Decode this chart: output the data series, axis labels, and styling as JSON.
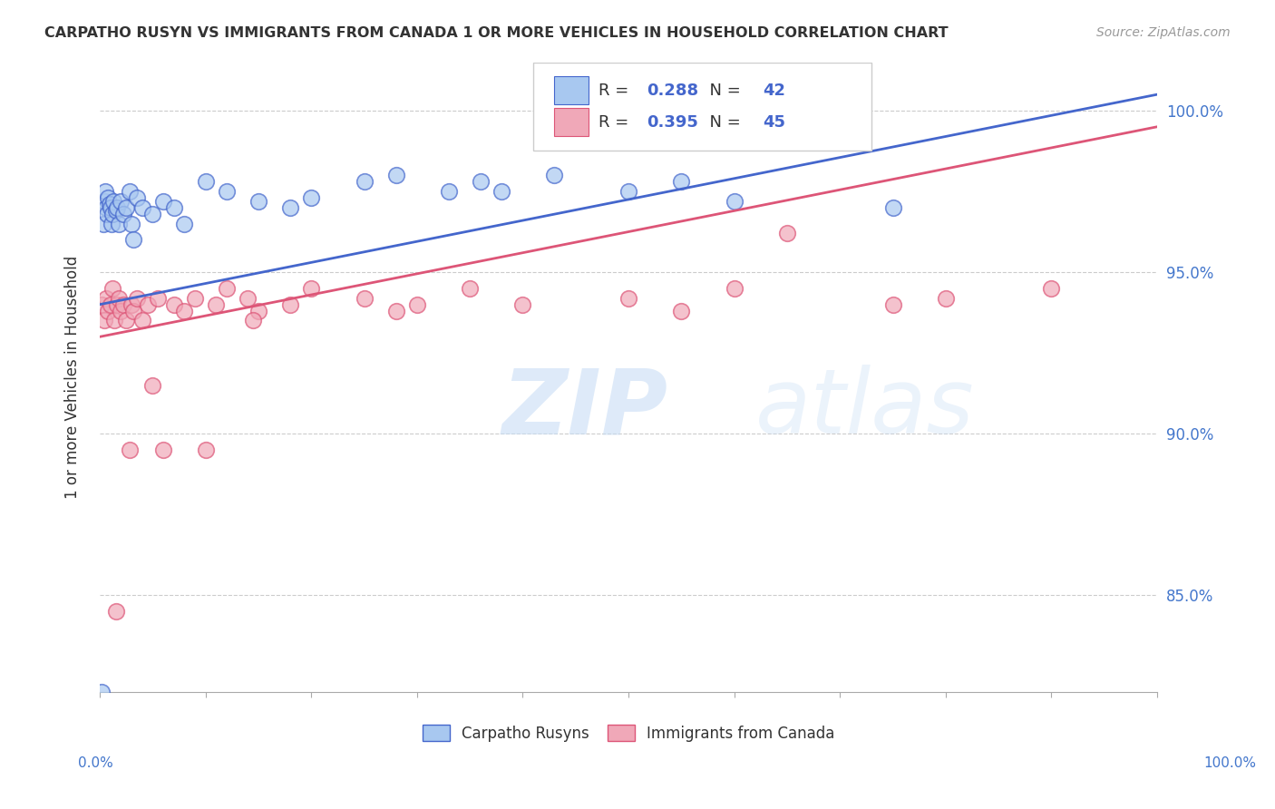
{
  "title": "CARPATHO RUSYN VS IMMIGRANTS FROM CANADA 1 OR MORE VEHICLES IN HOUSEHOLD CORRELATION CHART",
  "source": "Source: ZipAtlas.com",
  "ylabel": "1 or more Vehicles in Household",
  "legend_blue_R": "0.288",
  "legend_blue_N": "42",
  "legend_pink_R": "0.395",
  "legend_pink_N": "45",
  "blue_color": "#a8c8f0",
  "pink_color": "#f0a8b8",
  "blue_line_color": "#4466cc",
  "pink_line_color": "#dd5577",
  "blue_scatter_x": [
    0.2,
    0.3,
    0.4,
    0.5,
    0.6,
    0.7,
    0.8,
    0.9,
    1.0,
    1.1,
    1.2,
    1.3,
    1.5,
    1.6,
    1.8,
    2.0,
    2.2,
    2.5,
    2.8,
    3.0,
    3.5,
    4.0,
    5.0,
    6.0,
    7.0,
    8.0,
    10.0,
    12.0,
    15.0,
    18.0,
    20.0,
    25.0,
    28.0,
    33.0,
    36.0,
    38.0,
    43.0,
    50.0,
    55.0,
    60.0,
    75.0,
    3.2
  ],
  "blue_scatter_y": [
    82.0,
    96.5,
    97.2,
    97.5,
    97.0,
    96.8,
    97.3,
    97.1,
    97.0,
    96.5,
    96.8,
    97.2,
    96.9,
    97.0,
    96.5,
    97.2,
    96.8,
    97.0,
    97.5,
    96.5,
    97.3,
    97.0,
    96.8,
    97.2,
    97.0,
    96.5,
    97.8,
    97.5,
    97.2,
    97.0,
    97.3,
    97.8,
    98.0,
    97.5,
    97.8,
    97.5,
    98.0,
    97.5,
    97.8,
    97.2,
    97.0,
    96.0
  ],
  "pink_scatter_x": [
    0.2,
    0.4,
    0.6,
    0.8,
    1.0,
    1.2,
    1.4,
    1.6,
    1.8,
    2.0,
    2.2,
    2.5,
    2.8,
    3.0,
    3.2,
    3.5,
    4.0,
    4.5,
    5.0,
    5.5,
    6.0,
    7.0,
    8.0,
    9.0,
    10.0,
    11.0,
    12.0,
    14.0,
    15.0,
    18.0,
    20.0,
    25.0,
    28.0,
    30.0,
    35.0,
    40.0,
    50.0,
    55.0,
    60.0,
    65.0,
    75.0,
    80.0,
    90.0,
    14.5,
    1.5
  ],
  "pink_scatter_y": [
    94.0,
    93.5,
    94.2,
    93.8,
    94.0,
    94.5,
    93.5,
    94.0,
    94.2,
    93.8,
    94.0,
    93.5,
    89.5,
    94.0,
    93.8,
    94.2,
    93.5,
    94.0,
    91.5,
    94.2,
    89.5,
    94.0,
    93.8,
    94.2,
    89.5,
    94.0,
    94.5,
    94.2,
    93.8,
    94.0,
    94.5,
    94.2,
    93.8,
    94.0,
    94.5,
    94.0,
    94.2,
    93.8,
    94.5,
    96.2,
    94.0,
    94.2,
    94.5,
    93.5,
    84.5
  ],
  "blue_line_x0": 0,
  "blue_line_y0": 94.0,
  "blue_line_x1": 100,
  "blue_line_y1": 100.5,
  "pink_line_x0": 0,
  "pink_line_y0": 93.0,
  "pink_line_x1": 100,
  "pink_line_y1": 99.5,
  "xlim": [
    0,
    100
  ],
  "ylim": [
    82,
    101.5
  ],
  "yticks": [
    85,
    90,
    95,
    100
  ],
  "ytick_labels": [
    "85.0%",
    "90.0%",
    "95.0%",
    "100.0%"
  ],
  "background_color": "#ffffff",
  "grid_color": "#cccccc",
  "tick_color": "#4477cc"
}
